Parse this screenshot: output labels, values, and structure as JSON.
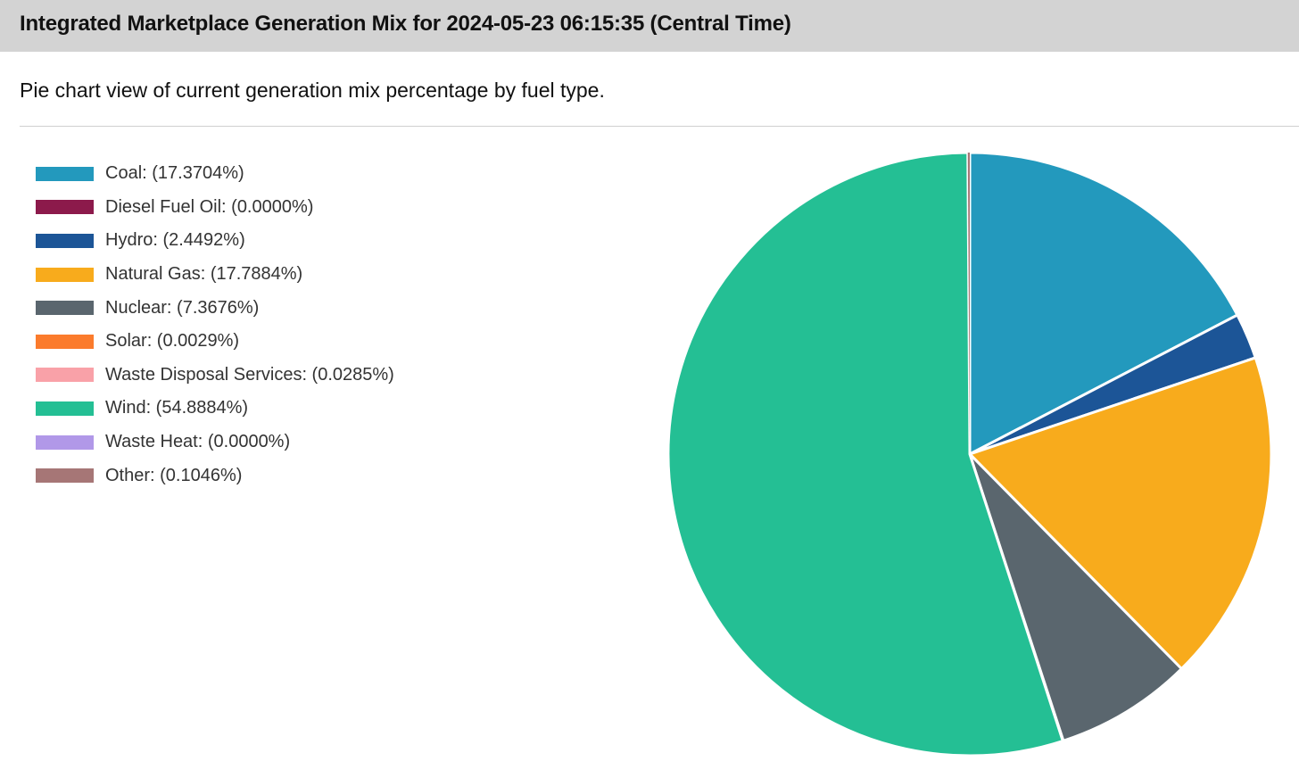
{
  "header": {
    "title": "Integrated Marketplace Generation Mix for 2024-05-23 06:15:35 (Central Time)"
  },
  "subtitle": "Pie chart view of current generation mix percentage by fuel type.",
  "chart_data": {
    "type": "pie",
    "title": "Integrated Marketplace Generation Mix for 2024-05-23 06:15:35 (Central Time)",
    "subtitle": "Pie chart view of current generation mix percentage by fuel type.",
    "legend_position": "left",
    "slices": [
      {
        "label": "Coal",
        "value": 17.3704,
        "legend_text": "Coal: (17.3704%)",
        "color": "#2399bd"
      },
      {
        "label": "Diesel Fuel Oil",
        "value": 0.0,
        "legend_text": "Diesel Fuel Oil: (0.0000%)",
        "color": "#8c1a4b"
      },
      {
        "label": "Hydro",
        "value": 2.4492,
        "legend_text": "Hydro: (2.4492%)",
        "color": "#1c5597"
      },
      {
        "label": "Natural Gas",
        "value": 17.7884,
        "legend_text": "Natural Gas: (17.7884%)",
        "color": "#f8ab1c"
      },
      {
        "label": "Nuclear",
        "value": 7.3676,
        "legend_text": "Nuclear: (7.3676%)",
        "color": "#5a666e"
      },
      {
        "label": "Solar",
        "value": 0.0029,
        "legend_text": "Solar: (0.0029%)",
        "color": "#fb7b2c"
      },
      {
        "label": "Waste Disposal Services",
        "value": 0.0285,
        "legend_text": "Waste Disposal Services: (0.0285%)",
        "color": "#f9a1a8"
      },
      {
        "label": "Wind",
        "value": 54.8884,
        "legend_text": "Wind: (54.8884%)",
        "color": "#24bf94"
      },
      {
        "label": "Waste Heat",
        "value": 0.0,
        "legend_text": "Waste Heat: (0.0000%)",
        "color": "#b198e8"
      },
      {
        "label": "Other",
        "value": 0.1046,
        "legend_text": "Other: (0.1046%)",
        "color": "#a67676"
      }
    ]
  }
}
